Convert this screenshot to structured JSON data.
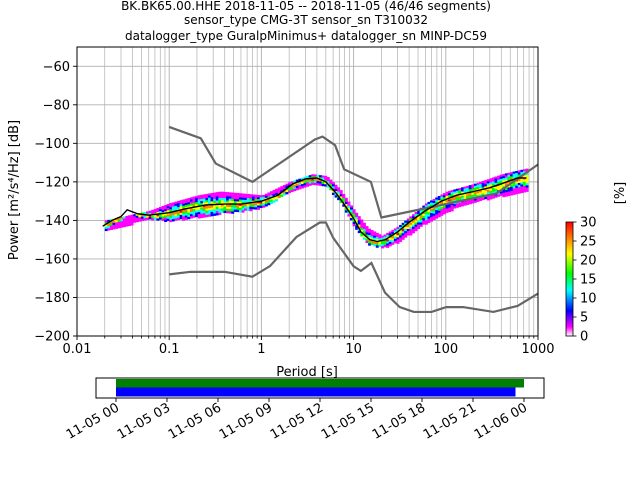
{
  "title_lines": [
    "BK.BK65.00.HHE   2018-11-05 -- 2018-11-05  (46/46 segments)",
    "sensor_type CMG-3T sensor_sn T310032",
    "datalogger_type GuralpMinimus+ datalogger_sn MINP-DC59"
  ],
  "chart_data": {
    "type": "heatmap",
    "x_scale": "log",
    "xlim": [
      0.01,
      1000
    ],
    "ylim": [
      -200,
      -50
    ],
    "xlabel": "Period [s]",
    "ylabel": "Power [m²/s⁴/Hz] [dB]",
    "x_ticks": [
      {
        "v": 0.01,
        "label": "0.01"
      },
      {
        "v": 0.1,
        "label": "0.1"
      },
      {
        "v": 1,
        "label": "1"
      },
      {
        "v": 10,
        "label": "10"
      },
      {
        "v": 100,
        "label": "100"
      },
      {
        "v": 1000,
        "label": "1000"
      }
    ],
    "y_ticks": [
      {
        "v": -60,
        "label": "−60"
      },
      {
        "v": -80,
        "label": "−80"
      },
      {
        "v": -100,
        "label": "−100"
      },
      {
        "v": -120,
        "label": "−120"
      },
      {
        "v": -140,
        "label": "−140"
      },
      {
        "v": -160,
        "label": "−160"
      },
      {
        "v": -180,
        "label": "−180"
      },
      {
        "v": -200,
        "label": "−200"
      }
    ],
    "grid": true,
    "nhnm": [
      [
        0.1,
        -91.5
      ],
      [
        0.22,
        -97.4
      ],
      [
        0.32,
        -110.5
      ],
      [
        0.8,
        -120
      ],
      [
        3.8,
        -98
      ],
      [
        4.6,
        -96.5
      ],
      [
        6.3,
        -101
      ],
      [
        7.9,
        -113.5
      ],
      [
        15.4,
        -120
      ],
      [
        20,
        -138.5
      ],
      [
        354.8,
        -126
      ],
      [
        1000,
        -111
      ]
    ],
    "nlnm": [
      [
        0.1,
        -168
      ],
      [
        0.17,
        -166.7
      ],
      [
        0.4,
        -166.7
      ],
      [
        0.8,
        -169.2
      ],
      [
        1.24,
        -163.7
      ],
      [
        2.4,
        -148.6
      ],
      [
        4.3,
        -141.1
      ],
      [
        5,
        -141.1
      ],
      [
        6,
        -149
      ],
      [
        10,
        -163.8
      ],
      [
        12,
        -166.2
      ],
      [
        15.6,
        -162.1
      ],
      [
        21.9,
        -177.5
      ],
      [
        31.6,
        -185
      ],
      [
        45,
        -187.5
      ],
      [
        70,
        -187.5
      ],
      [
        101,
        -185
      ],
      [
        154,
        -185
      ],
      [
        328,
        -187.5
      ],
      [
        600,
        -184.4
      ],
      [
        1000,
        -178
      ]
    ],
    "mode_curve": [
      [
        0.019,
        -143
      ],
      [
        0.024,
        -140
      ],
      [
        0.03,
        -138
      ],
      [
        0.035,
        -134.5
      ],
      [
        0.045,
        -136.5
      ],
      [
        0.06,
        -137.3
      ],
      [
        0.1,
        -136
      ],
      [
        0.15,
        -134
      ],
      [
        0.25,
        -132
      ],
      [
        0.4,
        -131.5
      ],
      [
        0.6,
        -131.5
      ],
      [
        1,
        -130
      ],
      [
        1.5,
        -127
      ],
      [
        2.2,
        -121
      ],
      [
        3,
        -118.5
      ],
      [
        4,
        -118
      ],
      [
        5,
        -120
      ],
      [
        6.5,
        -126
      ],
      [
        8,
        -132
      ],
      [
        10,
        -139
      ],
      [
        12,
        -146
      ],
      [
        15,
        -150
      ],
      [
        18,
        -151
      ],
      [
        22,
        -150
      ],
      [
        30,
        -146
      ],
      [
        40,
        -141
      ],
      [
        60,
        -135
      ],
      [
        90,
        -130
      ],
      [
        130,
        -127
      ],
      [
        200,
        -125
      ],
      [
        300,
        -123
      ],
      [
        400,
        -121
      ],
      [
        600,
        -118
      ],
      [
        750,
        -118
      ]
    ],
    "envelope_upper": [
      [
        0.02,
        -140
      ],
      [
        0.06,
        -135
      ],
      [
        0.1,
        -131
      ],
      [
        0.2,
        -127
      ],
      [
        0.35,
        -125
      ],
      [
        0.6,
        -126
      ],
      [
        1,
        -127
      ],
      [
        2,
        -120
      ],
      [
        3.5,
        -116
      ],
      [
        5,
        -117
      ],
      [
        7,
        -124
      ],
      [
        10,
        -135
      ],
      [
        14,
        -144
      ],
      [
        20,
        -148
      ],
      [
        30,
        -143
      ],
      [
        60,
        -131
      ],
      [
        100,
        -125
      ],
      [
        200,
        -121
      ],
      [
        400,
        -116
      ],
      [
        750,
        -113
      ]
    ],
    "envelope_lower": [
      [
        0.02,
        -145
      ],
      [
        0.06,
        -139
      ],
      [
        0.1,
        -140
      ],
      [
        0.2,
        -138
      ],
      [
        0.35,
        -136
      ],
      [
        0.6,
        -135
      ],
      [
        1,
        -133
      ],
      [
        2,
        -125
      ],
      [
        3.5,
        -121
      ],
      [
        5,
        -122
      ],
      [
        7,
        -130
      ],
      [
        10,
        -143
      ],
      [
        14,
        -152
      ],
      [
        20,
        -154
      ],
      [
        30,
        -151
      ],
      [
        60,
        -141
      ],
      [
        100,
        -135
      ],
      [
        200,
        -130
      ],
      [
        400,
        -127
      ],
      [
        750,
        -124
      ]
    ],
    "colorbar": {
      "label": "[%]",
      "min": 0,
      "max": 30,
      "ticks": [
        {
          "v": 0,
          "label": "0"
        },
        {
          "v": 5,
          "label": "5"
        },
        {
          "v": 10,
          "label": "10"
        },
        {
          "v": 15,
          "label": "15"
        },
        {
          "v": 20,
          "label": "20"
        },
        {
          "v": 25,
          "label": "25"
        },
        {
          "v": 30,
          "label": "30"
        }
      ],
      "colors": [
        "#ffffff",
        "#ff00ff",
        "#0000ff",
        "#00ffff",
        "#00ff00",
        "#ffff00",
        "#ff8000",
        "#ff0000"
      ]
    },
    "timeline": {
      "start_hour": 0,
      "end_hour": 24,
      "tick_labels": [
        "11-05 00",
        "11-05 03",
        "11-05 06",
        "11-05 09",
        "11-05 12",
        "11-05 15",
        "11-05 18",
        "11-05 21",
        "11-06 00"
      ],
      "tick_hours": [
        0,
        3,
        6,
        9,
        12,
        15,
        18,
        21,
        24
      ],
      "data_bar": {
        "start_hour": 0,
        "end_hour": 24,
        "color": "#008000"
      },
      "psd_bar": {
        "start_hour": 0,
        "end_hour": 23.5,
        "color": "#0000ff"
      }
    }
  }
}
